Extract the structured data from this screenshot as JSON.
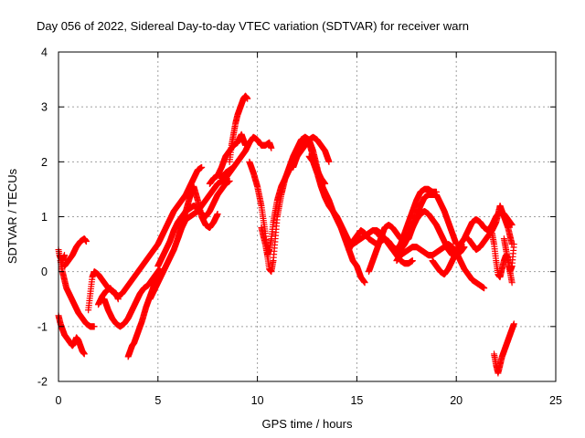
{
  "chart_data": {
    "type": "scatter",
    "title": "Day 056 of 2022, Sidereal Day-to-day VTEC variation (SDTVAR) for receiver warn",
    "xlabel": "GPS time / hours",
    "ylabel": "SDTVAR / TECUs",
    "xlim": [
      0,
      25
    ],
    "ylim": [
      -2,
      4
    ],
    "xticks": [
      0,
      5,
      10,
      15,
      20,
      25
    ],
    "yticks": [
      -2,
      -1,
      0,
      1,
      2,
      3,
      4
    ],
    "grid": true,
    "marker": "plus",
    "series": [
      {
        "name": "SDTVAR",
        "color": "#ff0000",
        "traces": [
          {
            "x": [
              0.0,
              0.05,
              0.1,
              0.2,
              0.3
            ],
            "y": [
              0.4,
              0.3,
              0.25,
              0.2,
              0.3
            ]
          },
          {
            "x": [
              0.3,
              0.5,
              0.7,
              0.9,
              1.1,
              1.3,
              1.4
            ],
            "y": [
              0.1,
              0.2,
              0.3,
              0.45,
              0.55,
              0.6,
              0.55
            ]
          },
          {
            "x": [
              0.0,
              0.1,
              0.2,
              0.3,
              0.4,
              0.5,
              0.6,
              0.7,
              0.8,
              0.9,
              1.0,
              1.1,
              1.2,
              1.3
            ],
            "y": [
              -0.8,
              -0.95,
              -1.05,
              -1.15,
              -1.2,
              -1.25,
              -1.3,
              -1.35,
              -1.3,
              -1.2,
              -1.25,
              -1.35,
              -1.45,
              -1.5
            ]
          },
          {
            "x": [
              0.1,
              0.2,
              0.3,
              0.4,
              0.6,
              0.8,
              1.0,
              1.2,
              1.4,
              1.6,
              1.8
            ],
            "y": [
              0.2,
              0.0,
              -0.15,
              -0.3,
              -0.45,
              -0.6,
              -0.75,
              -0.85,
              -0.95,
              -1.0,
              -1.0
            ]
          },
          {
            "x": [
              1.5,
              1.6,
              1.7,
              1.8,
              2.0,
              2.2,
              2.4,
              2.5,
              2.7,
              2.9,
              3.0
            ],
            "y": [
              -0.7,
              -0.4,
              -0.1,
              0.0,
              -0.05,
              -0.15,
              -0.25,
              -0.3,
              -0.35,
              -0.4,
              -0.5
            ]
          },
          {
            "x": [
              2.3,
              2.5,
              2.7,
              2.9,
              3.1,
              3.3,
              3.5,
              3.7,
              3.9,
              4.1,
              4.3,
              4.5,
              4.7,
              4.9,
              5.1
            ],
            "y": [
              -0.5,
              -0.7,
              -0.85,
              -0.95,
              -1.0,
              -0.95,
              -0.85,
              -0.7,
              -0.55,
              -0.4,
              -0.3,
              -0.25,
              -0.15,
              -0.05,
              0.05
            ]
          },
          {
            "x": [
              3.5,
              3.6,
              3.7,
              3.8,
              3.9,
              4.0,
              4.2,
              4.4,
              4.6,
              4.8,
              5.0
            ],
            "y": [
              -1.55,
              -1.45,
              -1.35,
              -1.3,
              -1.2,
              -1.1,
              -0.9,
              -0.65,
              -0.45,
              -0.25,
              -0.1
            ]
          },
          {
            "x": [
              2.0,
              2.2,
              2.4,
              2.6,
              2.8,
              3.0,
              3.2,
              3.4,
              3.6,
              3.8,
              4.0,
              4.2,
              4.4,
              4.6,
              4.8,
              5.0,
              5.2,
              5.4,
              5.6,
              5.8,
              6.0,
              6.2,
              6.4,
              6.6,
              6.8,
              7.0,
              7.2
            ],
            "y": [
              -0.6,
              -0.45,
              -0.35,
              -0.3,
              -0.4,
              -0.45,
              -0.4,
              -0.3,
              -0.2,
              -0.1,
              0.0,
              0.1,
              0.2,
              0.3,
              0.4,
              0.5,
              0.65,
              0.8,
              0.95,
              1.1,
              1.2,
              1.3,
              1.4,
              1.55,
              1.7,
              1.85,
              1.9
            ]
          },
          {
            "x": [
              4.6,
              4.8,
              5.0,
              5.2,
              5.4,
              5.6,
              5.8,
              6.0,
              6.2,
              6.4,
              6.6,
              6.8,
              7.0,
              7.2,
              7.4,
              7.6,
              7.8,
              8.0,
              8.2,
              8.4,
              8.6,
              8.8
            ],
            "y": [
              -0.5,
              -0.35,
              -0.2,
              -0.05,
              0.1,
              0.25,
              0.4,
              0.6,
              0.8,
              0.95,
              1.0,
              1.05,
              1.1,
              1.2,
              1.3,
              1.4,
              1.5,
              1.6,
              1.65,
              1.7,
              1.8,
              1.9
            ]
          },
          {
            "x": [
              5.0,
              5.2,
              5.4,
              5.6,
              5.8,
              6.0,
              6.2,
              6.4,
              6.6,
              6.8,
              7.0,
              7.2,
              7.4,
              7.6,
              7.8,
              8.0,
              8.2,
              8.4,
              8.6
            ],
            "y": [
              0.1,
              0.25,
              0.4,
              0.55,
              0.75,
              0.9,
              1.0,
              1.1,
              1.15,
              1.2,
              1.15,
              1.05,
              1.0,
              1.1,
              1.25,
              1.4,
              1.5,
              1.6,
              1.65
            ]
          },
          {
            "x": [
              6.0,
              6.2,
              6.4,
              6.6,
              6.8,
              7.0,
              7.2,
              7.4,
              7.6,
              7.8,
              8.0
            ],
            "y": [
              0.6,
              0.85,
              1.1,
              1.35,
              1.55,
              1.3,
              1.0,
              0.85,
              0.8,
              0.9,
              1.05
            ]
          },
          {
            "x": [
              7.6,
              7.8,
              8.0,
              8.2,
              8.4,
              8.6,
              8.8,
              9.0,
              9.2,
              9.3,
              9.4
            ],
            "y": [
              1.6,
              1.7,
              1.75,
              1.9,
              2.1,
              2.2,
              2.3,
              2.35,
              2.5,
              2.4,
              2.3
            ]
          },
          {
            "x": [
              8.6,
              8.7,
              8.8,
              8.9,
              9.0,
              9.1,
              9.2,
              9.3,
              9.4,
              9.5
            ],
            "y": [
              2.0,
              2.3,
              2.5,
              2.7,
              2.85,
              2.95,
              3.05,
              3.15,
              3.2,
              3.15
            ]
          },
          {
            "x": [
              8.2,
              8.4,
              8.6,
              8.8,
              9.0,
              9.2,
              9.4,
              9.6,
              9.8,
              10.0,
              10.2,
              10.4,
              10.6,
              10.7
            ],
            "y": [
              1.7,
              1.8,
              1.85,
              1.9,
              2.0,
              2.1,
              2.2,
              2.35,
              2.45,
              2.4,
              2.3,
              2.3,
              2.35,
              2.25
            ]
          },
          {
            "x": [
              9.6,
              9.8,
              10.0,
              10.2,
              10.4,
              10.5,
              10.6,
              10.7,
              10.8,
              10.9,
              11.0,
              11.2,
              11.4,
              11.6,
              11.8,
              12.0,
              12.2,
              12.4,
              12.6,
              12.8,
              13.0,
              13.2,
              13.4
            ],
            "y": [
              2.0,
              1.8,
              1.55,
              1.2,
              0.7,
              0.3,
              0.05,
              0.0,
              0.2,
              0.6,
              1.0,
              1.4,
              1.7,
              1.9,
              2.1,
              2.25,
              2.4,
              2.45,
              2.35,
              2.1,
              1.85,
              1.7,
              1.6
            ]
          },
          {
            "x": [
              10.2,
              10.4,
              10.5,
              10.6,
              10.7,
              10.8,
              11.0,
              11.2,
              11.4,
              11.6,
              11.8,
              12.0,
              12.2,
              12.4,
              12.6,
              12.8,
              13.0,
              13.2,
              13.4,
              13.6
            ],
            "y": [
              0.8,
              0.5,
              0.3,
              0.4,
              0.6,
              0.9,
              1.3,
              1.55,
              1.7,
              1.85,
              2.0,
              2.1,
              2.2,
              2.3,
              2.4,
              2.45,
              2.4,
              2.3,
              2.2,
              2.0
            ]
          },
          {
            "x": [
              11.8,
              12.0,
              12.2,
              12.4,
              12.6,
              12.8,
              13.0,
              13.2,
              13.4,
              13.6,
              13.8,
              14.0,
              14.2,
              14.4,
              14.6,
              14.8,
              15.0,
              15.2,
              15.4
            ],
            "y": [
              1.9,
              2.1,
              2.3,
              2.45,
              2.4,
              2.2,
              1.9,
              1.6,
              1.45,
              1.3,
              1.1,
              0.95,
              0.8,
              0.6,
              0.4,
              0.2,
              0.1,
              -0.1,
              -0.2
            ]
          },
          {
            "x": [
              12.6,
              12.8,
              13.0,
              13.2,
              13.4,
              13.6,
              13.8,
              14.0,
              14.2,
              14.4,
              14.6,
              14.8,
              15.0,
              15.2,
              15.4,
              15.6,
              15.8,
              16.0,
              16.2,
              16.4,
              16.6,
              16.8,
              17.0,
              17.2,
              17.4,
              17.6,
              17.8
            ],
            "y": [
              2.1,
              2.0,
              1.8,
              1.55,
              1.35,
              1.2,
              1.1,
              1.0,
              0.85,
              0.7,
              0.55,
              0.5,
              0.55,
              0.6,
              0.65,
              0.7,
              0.75,
              0.75,
              0.7,
              0.6,
              0.5,
              0.4,
              0.3,
              0.2,
              0.15,
              0.15,
              0.2
            ]
          },
          {
            "x": [
              14.6,
              14.8,
              15.0,
              15.2,
              15.4,
              15.6,
              15.8,
              16.0,
              16.2,
              16.4,
              16.6,
              16.8,
              17.0,
              17.2,
              17.4,
              17.6,
              17.8,
              18.0,
              18.2,
              18.4,
              18.6,
              18.8,
              19.0
            ],
            "y": [
              0.4,
              0.55,
              0.65,
              0.75,
              0.7,
              0.6,
              0.55,
              0.5,
              0.55,
              0.6,
              0.55,
              0.45,
              0.4,
              0.5,
              0.7,
              0.9,
              1.1,
              1.3,
              1.45,
              1.5,
              1.5,
              1.45,
              1.45
            ]
          },
          {
            "x": [
              15.6,
              15.8,
              16.0,
              16.2,
              16.4,
              16.6,
              16.8,
              17.0,
              17.2,
              17.4,
              17.6,
              17.8,
              18.0,
              18.2,
              18.4,
              18.6,
              18.8,
              19.0,
              19.2,
              19.4,
              19.6,
              19.8,
              20.0
            ],
            "y": [
              0.0,
              0.2,
              0.4,
              0.6,
              0.8,
              0.85,
              0.8,
              0.7,
              0.6,
              0.55,
              0.6,
              0.8,
              1.0,
              1.2,
              1.35,
              1.4,
              1.4,
              1.4,
              1.25,
              1.1,
              0.9,
              0.7,
              0.5
            ]
          },
          {
            "x": [
              16.0,
              16.2,
              16.4,
              16.6,
              16.8,
              17.0,
              17.2,
              17.4,
              17.6,
              17.8,
              18.0,
              18.2,
              18.4,
              18.6,
              18.8,
              19.0,
              19.2,
              19.4,
              19.6,
              19.8,
              20.0,
              20.2,
              20.4
            ],
            "y": [
              0.7,
              0.65,
              0.6,
              0.5,
              0.4,
              0.35,
              0.4,
              0.5,
              0.65,
              0.8,
              0.95,
              1.05,
              1.1,
              1.05,
              0.95,
              0.85,
              0.7,
              0.55,
              0.4,
              0.3,
              0.3,
              0.35,
              0.45
            ]
          },
          {
            "x": [
              17.0,
              17.2,
              17.4,
              17.6,
              17.8,
              18.0,
              18.2,
              18.4,
              18.6,
              18.8,
              19.0,
              19.2,
              19.4,
              19.6,
              19.8,
              20.0,
              20.2,
              20.4,
              20.6,
              20.8,
              21.0,
              21.2,
              21.4
            ],
            "y": [
              0.2,
              0.3,
              0.35,
              0.4,
              0.45,
              0.45,
              0.4,
              0.35,
              0.3,
              0.3,
              0.35,
              0.4,
              0.45,
              0.5,
              0.45,
              0.35,
              0.2,
              0.05,
              -0.05,
              -0.15,
              -0.2,
              -0.25,
              -0.3
            ]
          },
          {
            "x": [
              18.8,
              19.0,
              19.2,
              19.4,
              19.6,
              19.8,
              20.0,
              20.2,
              20.4,
              20.6,
              20.8,
              21.0,
              21.2,
              21.4,
              21.6,
              21.8,
              22.0,
              22.2,
              22.4,
              22.6,
              22.8
            ],
            "y": [
              0.2,
              0.1,
              0.0,
              -0.05,
              0.05,
              0.2,
              0.35,
              0.5,
              0.6,
              0.75,
              0.9,
              0.95,
              0.9,
              0.8,
              0.75,
              0.85,
              1.0,
              1.1,
              1.05,
              0.95,
              0.85
            ]
          },
          {
            "x": [
              20.6,
              20.8,
              21.0,
              21.2,
              21.4,
              21.6,
              21.8,
              22.0,
              22.2,
              22.4,
              22.6,
              22.8
            ],
            "y": [
              0.6,
              0.5,
              0.4,
              0.45,
              0.55,
              0.65,
              0.75,
              0.9,
              1.2,
              1.0,
              0.8,
              0.5
            ]
          },
          {
            "x": [
              21.8,
              21.9,
              22.0,
              22.1,
              22.2,
              22.3,
              22.4,
              22.5,
              22.6,
              22.7,
              22.8
            ],
            "y": [
              0.7,
              0.5,
              0.2,
              -0.05,
              -0.1,
              0.05,
              0.2,
              0.3,
              0.25,
              0.0,
              -0.2
            ]
          },
          {
            "x": [
              22.4,
              22.5,
              22.6,
              22.7,
              22.8,
              22.9
            ],
            "y": [
              0.6,
              0.4,
              0.2,
              0.0,
              0.1,
              0.5
            ]
          },
          {
            "x": [
              21.9,
              22.0,
              22.1,
              22.2,
              22.3,
              22.4,
              22.5,
              22.6,
              22.7,
              22.8,
              22.9
            ],
            "y": [
              -1.5,
              -1.7,
              -1.85,
              -1.7,
              -1.55,
              -1.45,
              -1.35,
              -1.25,
              -1.15,
              -1.05,
              -0.95
            ]
          }
        ]
      }
    ]
  }
}
